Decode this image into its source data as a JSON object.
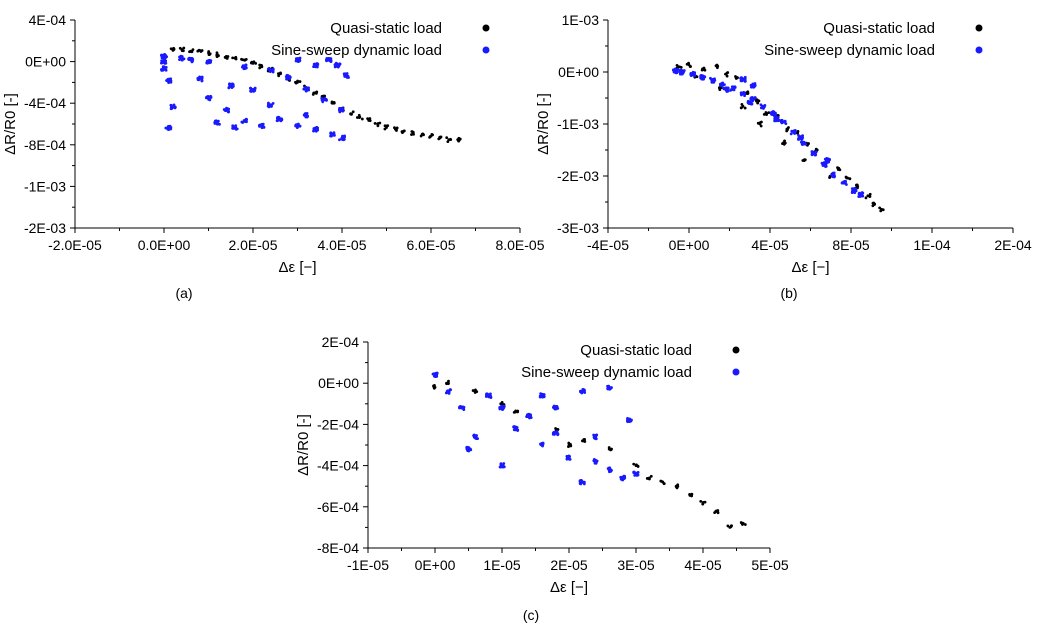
{
  "chart_data": [
    {
      "type": "scatter",
      "panel_label": "(a)",
      "xlabel": "Δε [−]",
      "ylabel": "ΔR/R0 [-]",
      "xlim": [
        -2e-05,
        8e-05
      ],
      "ylim": [
        -0.002,
        0.0004
      ],
      "xticks": [
        "-2.0E-05",
        "0.0E+00",
        "2.0E-05",
        "4.0E-05",
        "6.0E-05",
        "8.0E-05"
      ],
      "yticks": [
        "4E-04",
        "0E+00",
        "-4E-04",
        "-8E-04",
        "-1E-03",
        "-2E-03"
      ],
      "legend_position": "top-right",
      "series": [
        {
          "name": "Quasi-static load",
          "color": "#000000",
          "points": [
            [
              2e-06,
              5e-05
            ],
            [
              4e-06,
              6e-05
            ],
            [
              6e-06,
              4e-05
            ],
            [
              8e-06,
              5e-05
            ],
            [
              1e-05,
              2e-05
            ],
            [
              1.2e-05,
              0
            ],
            [
              1.4e-05,
              -2e-05
            ],
            [
              1.6e-05,
              -4e-05
            ],
            [
              1.8e-05,
              -6e-05
            ],
            [
              2e-05,
              -0.0001
            ],
            [
              2.2e-05,
              -0.00014
            ],
            [
              2.4e-05,
              -0.00018
            ],
            [
              2.6e-05,
              -0.00022
            ],
            [
              2.8e-05,
              -0.00028
            ],
            [
              3e-05,
              -0.00032
            ],
            [
              3.2e-05,
              -0.00038
            ],
            [
              3.4e-05,
              -0.00044
            ],
            [
              3.6e-05,
              -0.0005
            ],
            [
              3.8e-05,
              -0.00056
            ],
            [
              4e-05,
              -0.00062
            ],
            [
              4.2e-05,
              -0.00068
            ],
            [
              4.4e-05,
              -0.00072
            ],
            [
              4.6e-05,
              -0.00076
            ],
            [
              4.8e-05,
              -0.0008
            ],
            [
              5e-05,
              -0.00084
            ],
            [
              5.2e-05,
              -0.00086
            ],
            [
              5.4e-05,
              -0.00088
            ],
            [
              5.6e-05,
              -0.0009
            ],
            [
              5.8e-05,
              -0.00092
            ],
            [
              6e-05,
              -0.00094
            ],
            [
              6.2e-05,
              -0.00096
            ],
            [
              6.4e-05,
              -0.00098
            ],
            [
              6.6e-05,
              -0.00098
            ]
          ]
        },
        {
          "name": "Sine-sweep dynamic load",
          "color": "#1a1aff",
          "points": [
            [
              0.0,
              -2e-05
            ],
            [
              0.0,
              -8e-05
            ],
            [
              0.0,
              -0.00016
            ],
            [
              1e-06,
              -0.0003
            ],
            [
              2e-06,
              -0.0006
            ],
            [
              1e-06,
              -0.00084
            ],
            [
              4e-06,
              -4e-05
            ],
            [
              6e-06,
              -6e-05
            ],
            [
              1e-05,
              -8e-05
            ],
            [
              8e-06,
              -0.00028
            ],
            [
              1e-05,
              -0.0005
            ],
            [
              1.4e-05,
              -0.00064
            ],
            [
              1.8e-05,
              -0.00076
            ],
            [
              1.2e-05,
              -0.00078
            ],
            [
              1.6e-05,
              -0.00084
            ],
            [
              2.2e-05,
              -0.00082
            ],
            [
              2.6e-05,
              -0.00074
            ],
            [
              3e-05,
              -0.00082
            ],
            [
              3.4e-05,
              -0.00086
            ],
            [
              3.8e-05,
              -0.00092
            ],
            [
              4e-05,
              -0.00096
            ],
            [
              2.4e-05,
              -0.00018
            ],
            [
              2.8e-05,
              -0.00026
            ],
            [
              3.2e-05,
              -0.0004
            ],
            [
              3.6e-05,
              -0.00052
            ],
            [
              4e-05,
              -0.00064
            ],
            [
              3e-05,
              -6e-05
            ],
            [
              3.4e-05,
              -0.00012
            ],
            [
              3.7e-05,
              -6e-05
            ],
            [
              3.9e-05,
              -0.00012
            ],
            [
              4.1e-05,
              -0.00024
            ],
            [
              1.8e-05,
              -0.00014
            ],
            [
              2e-05,
              -0.0004
            ],
            [
              2.4e-05,
              -0.00058
            ],
            [
              1.5e-05,
              -0.00036
            ],
            [
              3.2e-05,
              -0.0007
            ]
          ]
        }
      ]
    },
    {
      "type": "scatter",
      "panel_label": "(b)",
      "xlabel": "Δε [−]",
      "ylabel": "ΔR/R0 [-]",
      "xlim": [
        -4e-05,
        0.0002
      ],
      "ylim": [
        -0.003,
        0.001
      ],
      "xticks": [
        "-4E-05",
        "0E+00",
        "4E-05",
        "8E-05",
        "1E-04",
        "2E-04"
      ],
      "yticks": [
        "1E-03",
        "0E+00",
        "-1E-03",
        "-2E-03",
        "-3E-03"
      ],
      "legend_position": "top-right",
      "series": [
        {
          "name": "Quasi-static load",
          "color": "#000000",
          "points": [
            [
              2e-06,
              0.0001
            ],
            [
              8e-06,
              0.00014
            ],
            [
              1.6e-05,
              6e-05
            ],
            [
              2.4e-05,
              0.00012
            ],
            [
              3e-05,
              -4e-05
            ],
            [
              3.6e-05,
              -0.00012
            ],
            [
              4.2e-05,
              -0.0004
            ],
            [
              4.8e-05,
              -0.00056
            ],
            [
              5.4e-05,
              -0.0008
            ],
            [
              6e-05,
              -0.00086
            ],
            [
              6.6e-05,
              -0.0011
            ],
            [
              7.2e-05,
              -0.00116
            ],
            [
              7.8e-05,
              -0.0014
            ],
            [
              8.4e-05,
              -0.0015
            ],
            [
              9e-05,
              -0.0017
            ],
            [
              9.6e-05,
              -0.00184
            ],
            [
              0.000102,
              -0.00204
            ],
            [
              0.000108,
              -0.0022
            ],
            [
              0.000114,
              -0.00238
            ],
            [
              0.000118,
              -0.00254
            ],
            [
              0.000122,
              -0.00264
            ],
            [
              1.2e-05,
              -8e-05
            ],
            [
              2.6e-05,
              -0.0003
            ],
            [
              4e-05,
              -0.00066
            ],
            [
              5e-05,
              -0.001
            ],
            [
              6.4e-05,
              -0.00136
            ],
            [
              7.6e-05,
              -0.0017
            ],
            [
              9.2e-05,
              -0.002
            ]
          ]
        },
        {
          "name": "Sine-sweep dynamic load",
          "color": "#1a1aff",
          "points": [
            [
              0.0,
              2e-05
            ],
            [
              4e-06,
              0.0
            ],
            [
              1e-05,
              -4e-05
            ],
            [
              1.6e-05,
              -0.0001
            ],
            [
              2.2e-05,
              -0.00016
            ],
            [
              2.8e-05,
              -0.00024
            ],
            [
              3.4e-05,
              -0.00032
            ],
            [
              4e-05,
              -0.00042
            ],
            [
              4.6e-05,
              -0.00052
            ],
            [
              5.2e-05,
              -0.00066
            ],
            [
              5.8e-05,
              -0.0008
            ],
            [
              6.4e-05,
              -0.00096
            ],
            [
              7e-05,
              -0.00116
            ],
            [
              7.6e-05,
              -0.00136
            ],
            [
              8.2e-05,
              -0.00156
            ],
            [
              8.8e-05,
              -0.00178
            ],
            [
              9.4e-05,
              -0.00198
            ],
            [
              0.0001,
              -0.00214
            ],
            [
              0.000106,
              -0.00228
            ],
            [
              0.00011,
              -0.00236
            ],
            [
              3e-05,
              -0.00034
            ],
            [
              4.4e-05,
              -0.0006
            ],
            [
              6e-05,
              -0.0009
            ],
            [
              7.4e-05,
              -0.00126
            ],
            [
              9e-05,
              -0.0017
            ],
            [
              4e-05,
              -0.00014
            ],
            [
              4.6e-05,
              -0.00026
            ]
          ]
        }
      ]
    },
    {
      "type": "scatter",
      "panel_label": "(c)",
      "xlabel": "Δε [−]",
      "ylabel": "ΔR/R0 [-]",
      "xlim": [
        -1e-05,
        5e-05
      ],
      "ylim": [
        -0.0008,
        0.0002
      ],
      "xticks": [
        "-1E-05",
        "0E+00",
        "1E-05",
        "2E-05",
        "3E-05",
        "4E-05",
        "5E-05"
      ],
      "yticks": [
        "2E-04",
        "0E+00",
        "-2E-04",
        "-4E-04",
        "-6E-04",
        "-8E-04"
      ],
      "legend_position": "top-right",
      "series": [
        {
          "name": "Quasi-static load",
          "color": "#000000",
          "points": [
            [
              0.0,
              -2e-05
            ],
            [
              2e-06,
              0.0
            ],
            [
              6e-06,
              -4e-05
            ],
            [
              1e-05,
              -0.0001
            ],
            [
              1.4e-05,
              -0.00016
            ],
            [
              1.8e-05,
              -0.00022
            ],
            [
              2.2e-05,
              -0.00028
            ],
            [
              2.6e-05,
              -0.00032
            ],
            [
              3e-05,
              -0.0004
            ],
            [
              3.4e-05,
              -0.00048
            ],
            [
              3.8e-05,
              -0.00054
            ],
            [
              4.2e-05,
              -0.00062
            ],
            [
              4.6e-05,
              -0.00068
            ],
            [
              4.4e-05,
              -0.0007
            ],
            [
              4e-05,
              -0.00058
            ],
            [
              3.6e-05,
              -0.0005
            ],
            [
              3.2e-05,
              -0.00046
            ],
            [
              2e-05,
              -0.0003
            ],
            [
              1.2e-05,
              -0.00014
            ]
          ]
        },
        {
          "name": "Sine-sweep dynamic load",
          "color": "#1a1aff",
          "points": [
            [
              0.0,
              4e-05
            ],
            [
              2e-06,
              -4e-05
            ],
            [
              4e-06,
              -0.00012
            ],
            [
              6e-06,
              -0.00026
            ],
            [
              8e-06,
              -6e-05
            ],
            [
              1e-05,
              -0.00012
            ],
            [
              1.2e-05,
              -0.00022
            ],
            [
              1.4e-05,
              -0.00016
            ],
            [
              1.6e-05,
              -0.0003
            ],
            [
              1.8e-05,
              -0.00024
            ],
            [
              2e-05,
              -0.00036
            ],
            [
              2.2e-05,
              -4e-05
            ],
            [
              2.4e-05,
              -0.00038
            ],
            [
              2.6e-05,
              -2e-05
            ],
            [
              2.6e-05,
              -0.00042
            ],
            [
              2.8e-05,
              -0.00046
            ],
            [
              3e-05,
              -0.00044
            ],
            [
              2.2e-05,
              -0.00048
            ],
            [
              1e-05,
              -0.0004
            ],
            [
              1.6e-05,
              -6e-05
            ],
            [
              5e-06,
              -0.00032
            ],
            [
              2.9e-05,
              -0.00018
            ],
            [
              2.4e-05,
              -0.00026
            ],
            [
              1.8e-05,
              -0.00012
            ]
          ]
        }
      ]
    }
  ]
}
